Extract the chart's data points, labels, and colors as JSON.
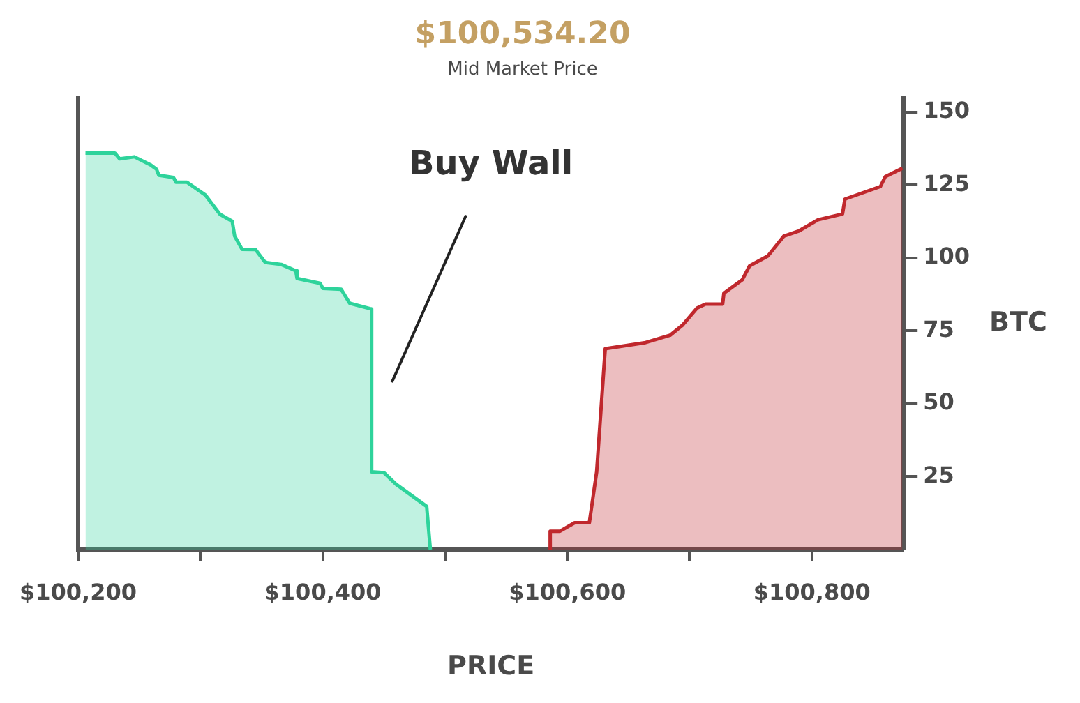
{
  "chart_data": {
    "type": "area",
    "title": "$100,534.20",
    "subtitle": "Mid Market Price",
    "xlabel": "PRICE",
    "ylabel": "BTC",
    "annotations": [
      "Buy Wall"
    ],
    "xlim": [
      100200,
      100875
    ],
    "xticks": [
      {
        "value": 100200,
        "label": "$100,200"
      },
      {
        "value": 100300,
        "label": null
      },
      {
        "value": 100400,
        "label": "$100,400"
      },
      {
        "value": 100500,
        "label": null
      },
      {
        "value": 100600,
        "label": "$100,600"
      },
      {
        "value": 100700,
        "label": null
      },
      {
        "value": 100800,
        "label": "$100,800"
      }
    ],
    "ylim": [
      0,
      155
    ],
    "yticks": [
      25,
      50,
      75,
      100,
      125,
      150
    ],
    "grid": false,
    "legend": false,
    "marker": "none",
    "line_style": "solid",
    "series": [
      {
        "color": "#2ed39b",
        "x": [
          100206,
          100230,
          100234,
          100246,
          100259,
          100264,
          100266,
          100278,
          100280,
          100289,
          100304,
          100316,
          100326,
          100328,
          100334,
          100345,
          100353,
          100366,
          100378,
          100379,
          100398,
          100400,
          100415,
          100422,
          100440,
          100440,
          100450,
          100460,
          100485,
          100488
        ],
        "values": [
          136,
          136,
          134,
          134.7,
          132,
          130.5,
          128.4,
          127.6,
          126,
          126,
          121.6,
          115,
          112.6,
          107.5,
          103,
          102.9,
          98.5,
          97.8,
          95.6,
          93,
          91.3,
          89.6,
          89.3,
          84.5,
          82.5,
          26.7,
          26.4,
          22.4,
          14.8,
          0
        ]
      },
      {
        "color": "#c0282d",
        "x": [
          100586,
          100586,
          100594,
          100606,
          100618,
          100624,
          100631,
          100663,
          100684,
          100694,
          100706,
          100713,
          100727,
          100728,
          100743,
          100749,
          100764,
          100777,
          100789,
          100805,
          100825,
          100827,
          100856,
          100860,
          100874
        ],
        "values": [
          0,
          6.3,
          6.3,
          9.2,
          9.2,
          26.7,
          68.9,
          70.9,
          73.5,
          76.9,
          82.8,
          84.2,
          84.2,
          87.9,
          92.5,
          97.3,
          100.7,
          107.5,
          109.2,
          113.1,
          115.1,
          120.2,
          124.5,
          127.9,
          130.8
        ]
      }
    ]
  }
}
